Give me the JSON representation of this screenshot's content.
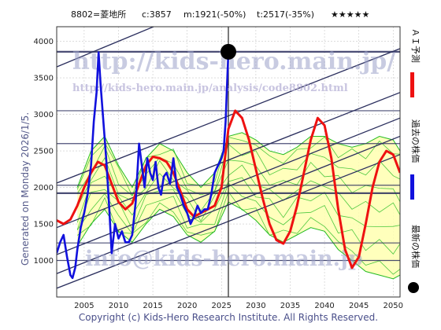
{
  "header": {
    "ticker": "8802=菱地所",
    "current": "c:3857",
    "m_label": "m:1921(-50%)",
    "t_label": "t:2517(-35%)",
    "stars": "★★★★★"
  },
  "watermarks": {
    "url": "http://kids-hero.main.jp/",
    "analysis_url": "http://kids-hero.main.jp/analysis/code8802.html",
    "email": "info@kids-hero.main.jp"
  },
  "side_text": "Generated on Monday 2026/1/5.",
  "copyright": "Copyright (c) Kids-Hero Research Institute. All Rights Reserved.",
  "legend": {
    "forecast": "ＡＩ予測",
    "past": "過去の株価",
    "latest": "最新の株価"
  },
  "colors": {
    "forecast": "#ee1111",
    "price": "#1111dd",
    "band_fill": "#ffffb0",
    "band_lines": "#22bb22",
    "trend": "#2b2f5e",
    "grid": "#c8c8c8"
  },
  "chart_data": {
    "type": "line",
    "xlim": [
      2001,
      2051
    ],
    "ylim": [
      500,
      4200
    ],
    "x_ticks": [
      2005,
      2010,
      2015,
      2020,
      2025,
      2030,
      2035,
      2040,
      2045,
      2050
    ],
    "y_ticks": [
      1000,
      1500,
      2000,
      2500,
      3000,
      3500,
      4000
    ],
    "latest_point": {
      "x": 2026.0,
      "y": 3857
    },
    "current_year": 2026.0,
    "horizontal_levels": [
      1000,
      1240,
      1921,
      2030,
      2600,
      3050,
      3857
    ],
    "trend_lines": [
      {
        "x": [
          2001,
          2051
        ],
        "y": [
          620,
          2450
        ]
      },
      {
        "x": [
          2001,
          2051
        ],
        "y": [
          820,
          2700
        ]
      },
      {
        "x": [
          2001,
          2051
        ],
        "y": [
          1080,
          2950
        ]
      },
      {
        "x": [
          2001,
          2051
        ],
        "y": [
          1450,
          3300
        ]
      },
      {
        "x": [
          2001,
          2051
        ],
        "y": [
          2060,
          3900
        ]
      },
      {
        "x": [
          2001,
          2051
        ],
        "y": [
          3650,
          5600
        ]
      }
    ],
    "series": [
      {
        "role": "past",
        "x": [
          2001.0,
          2001.5,
          2002.0,
          2002.5,
          2003.0,
          2003.3,
          2003.7,
          2004.0,
          2004.5,
          2005.0,
          2005.5,
          2006.0,
          2006.4,
          2006.8,
          2007.1,
          2007.4,
          2007.8,
          2008.2,
          2008.6,
          2009.0,
          2009.5,
          2010.0,
          2010.5,
          2011.0,
          2011.5,
          2012.0,
          2012.5,
          2013.0,
          2013.4,
          2013.8,
          2014.2,
          2014.6,
          2015.0,
          2015.4,
          2015.8,
          2016.2,
          2016.6,
          2017.0,
          2017.5,
          2018.0,
          2018.5,
          2019.0,
          2019.5,
          2020.0,
          2020.5,
          2021.0,
          2021.5,
          2022.0,
          2022.5,
          2023.0,
          2023.5,
          2024.0,
          2024.5,
          2025.0,
          2025.3,
          2025.6,
          2025.8,
          2026.0
        ],
        "y": [
          1100,
          1250,
          1350,
          1050,
          800,
          760,
          900,
          1150,
          1450,
          1650,
          1900,
          2300,
          2900,
          3300,
          3850,
          3400,
          2900,
          2400,
          1800,
          1100,
          1500,
          1300,
          1400,
          1250,
          1250,
          1350,
          1800,
          2600,
          2300,
          2000,
          2400,
          2200,
          2100,
          2350,
          2000,
          1900,
          2150,
          2200,
          2050,
          2400,
          2000,
          1900,
          1750,
          1650,
          1500,
          1600,
          1750,
          1650,
          1700,
          1700,
          1900,
          2200,
          2300,
          2400,
          2500,
          2900,
          3400,
          3857
        ]
      },
      {
        "role": "forecast",
        "x": [
          2001.0,
          2002.0,
          2003.0,
          2004.0,
          2005.0,
          2006.0,
          2007.0,
          2008.0,
          2009.0,
          2010.0,
          2011.0,
          2012.0,
          2013.0,
          2014.0,
          2015.0,
          2016.0,
          2017.0,
          2018.0,
          2019.0,
          2020.0,
          2021.0,
          2022.0,
          2023.0,
          2024.0,
          2025.0,
          2026.0,
          2027.0,
          2028.0,
          2029.0,
          2030.0,
          2031.0,
          2032.0,
          2033.0,
          2034.0,
          2035.0,
          2036.0,
          2037.0,
          2038.0,
          2039.0,
          2040.0,
          2041.0,
          2042.0,
          2043.0,
          2044.0,
          2045.0,
          2046.0,
          2047.0,
          2048.0,
          2049.0,
          2050.0,
          2051.0
        ],
        "y": [
          1550,
          1500,
          1560,
          1750,
          2000,
          2200,
          2350,
          2300,
          2050,
          1800,
          1700,
          1780,
          2050,
          2300,
          2420,
          2400,
          2350,
          2200,
          1950,
          1700,
          1600,
          1650,
          1700,
          1750,
          2000,
          2800,
          3050,
          2950,
          2650,
          2250,
          1850,
          1500,
          1280,
          1230,
          1400,
          1750,
          2200,
          2650,
          2950,
          2850,
          2400,
          1700,
          1150,
          900,
          1050,
          1500,
          2000,
          2350,
          2500,
          2450,
          2200
        ]
      },
      {
        "role": "band_upper",
        "x": [
          2004.0,
          2006.0,
          2008.0,
          2010.0,
          2012.0,
          2014.0,
          2016.0,
          2018.0,
          2020.0,
          2022.0,
          2024.0,
          2026.0,
          2028.0,
          2030.0,
          2032.0,
          2034.0,
          2036.0,
          2038.0,
          2040.0,
          2042.0,
          2044.0,
          2046.0,
          2048.0,
          2050.0,
          2051.0
        ],
        "y": [
          2000,
          2500,
          2700,
          2300,
          2000,
          2400,
          2600,
          2500,
          2200,
          2000,
          2200,
          2700,
          2750,
          2650,
          2500,
          2450,
          2550,
          2700,
          2700,
          2600,
          2550,
          2600,
          2700,
          2650,
          2500
        ]
      },
      {
        "role": "band_lower",
        "x": [
          2004.0,
          2006.0,
          2008.0,
          2010.0,
          2012.0,
          2014.0,
          2016.0,
          2018.0,
          2020.0,
          2022.0,
          2024.0,
          2026.0,
          2028.0,
          2030.0,
          2032.0,
          2034.0,
          2036.0,
          2038.0,
          2040.0,
          2042.0,
          2044.0,
          2046.0,
          2048.0,
          2050.0,
          2051.0
        ],
        "y": [
          1200,
          1500,
          1700,
          1400,
          1250,
          1500,
          1700,
          1600,
          1350,
          1250,
          1400,
          1800,
          1700,
          1550,
          1350,
          1250,
          1350,
          1450,
          1400,
          1150,
          1000,
          850,
          800,
          750,
          800
        ]
      }
    ]
  }
}
